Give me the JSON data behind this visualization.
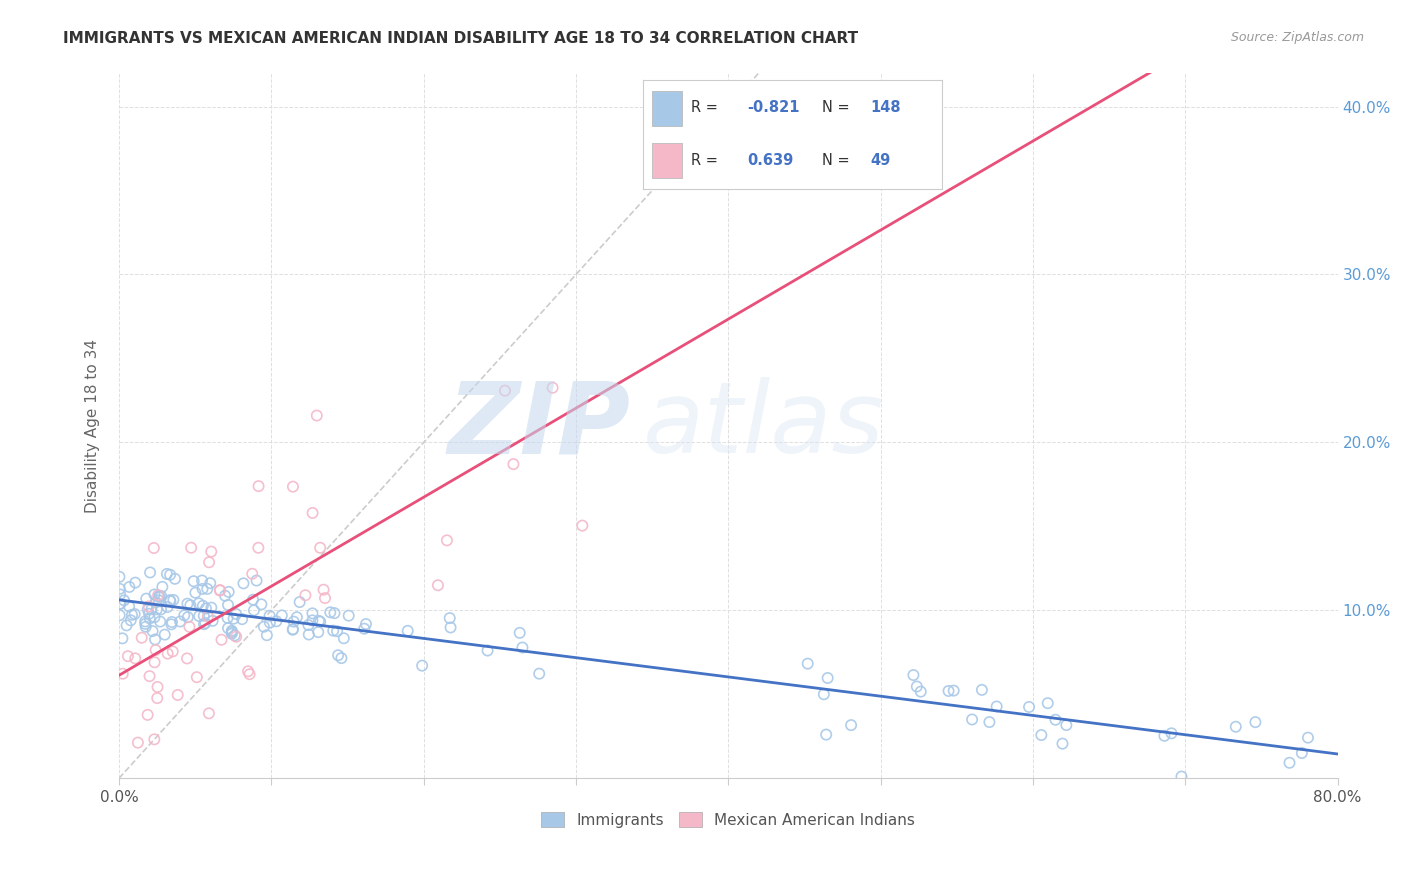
{
  "title": "IMMIGRANTS VS MEXICAN AMERICAN INDIAN DISABILITY AGE 18 TO 34 CORRELATION CHART",
  "source": "Source: ZipAtlas.com",
  "ylabel": "Disability Age 18 to 34",
  "x_min": 0.0,
  "x_max": 0.8,
  "y_min": 0.0,
  "y_max": 0.42,
  "immigrants_color": "#a8c8e8",
  "immigrants_color_line": "#4472c4",
  "mexican_color": "#f4b8c8",
  "mexican_color_line": "#e8507a",
  "diagonal_color": "#cccccc",
  "legend_r_immigrants": "-0.821",
  "legend_n_immigrants": "148",
  "legend_r_mexican": "0.639",
  "legend_n_mexican": "49",
  "background_color": "#ffffff",
  "watermark_zip": "ZIP",
  "watermark_atlas": "atlas",
  "r_color": "#4472c4",
  "n_color": "#4472c4",
  "title_color": "#333333",
  "source_color": "#999999",
  "axis_color": "#5b9bd5",
  "grid_color": "#e0e0e0",
  "ylabel_color": "#666666"
}
